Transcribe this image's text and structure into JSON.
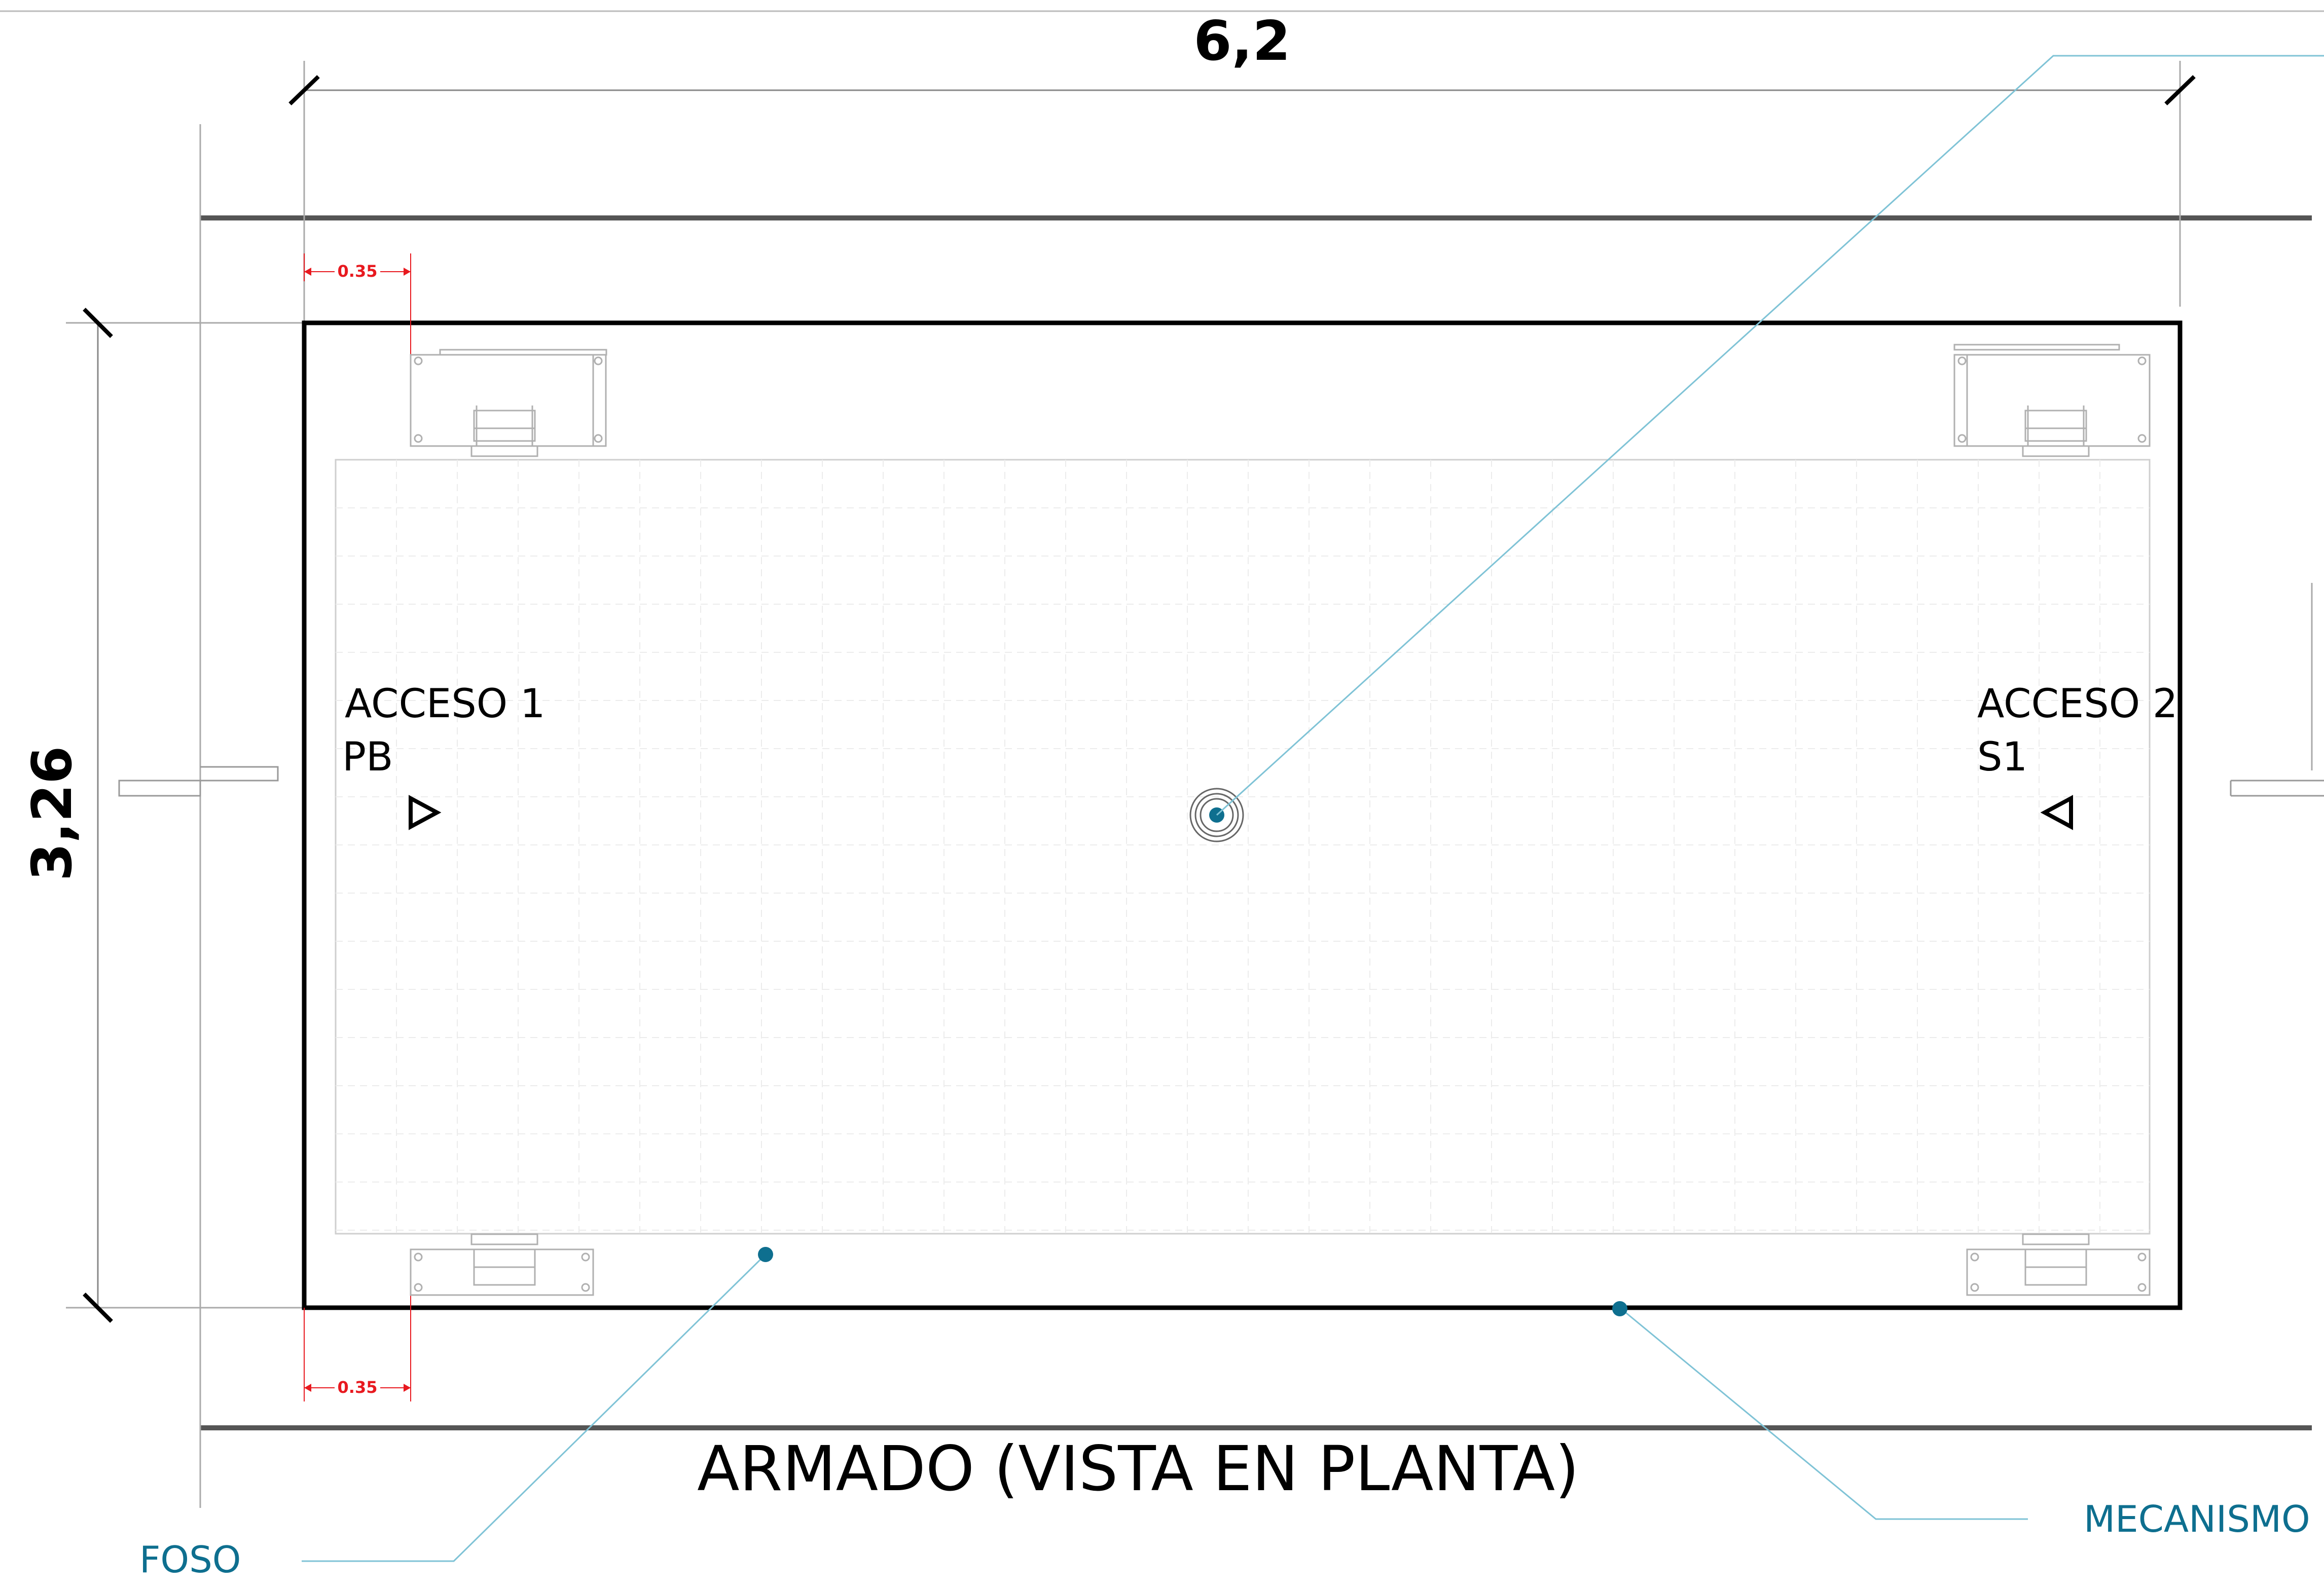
{
  "title": "ARMADO (VISTA EN PLANTA)",
  "dimensions": {
    "width_label": "6,2",
    "height_label": "3,26",
    "offset_top_label": "0.35",
    "offset_bottom_label": "0.35"
  },
  "accesses": [
    {
      "line1": "ACCESO 1",
      "line2": "PB",
      "arrow": "triangle-right-icon"
    },
    {
      "line1": "ACCESO 2",
      "line2": "S1",
      "arrow": "triangle-left-icon"
    }
  ],
  "callouts": {
    "foso": "FOSO",
    "mecanismo": "MECANISMO"
  },
  "colors": {
    "ink": "#000000",
    "callout": "#0e6f8f",
    "leader": "#7fc3d6",
    "dimension_red": "#e8191f",
    "thin_line": "#9a9a9a",
    "wall_line": "#555555"
  }
}
